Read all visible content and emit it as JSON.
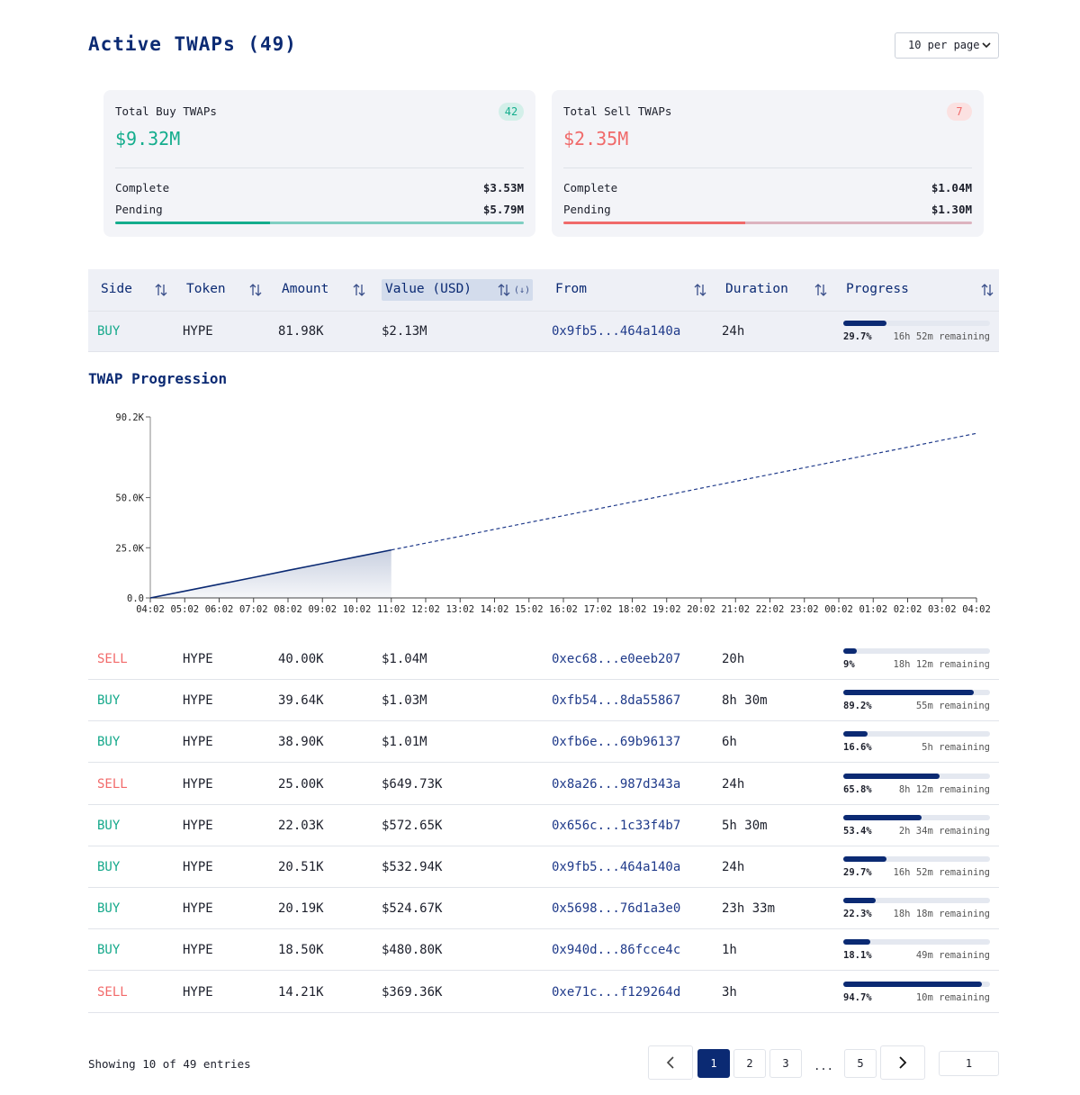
{
  "header": {
    "title": "Active TWAPs (49)",
    "per_page": "10 per page"
  },
  "cards": [
    {
      "label": "Total Buy TWAPs",
      "count": "42",
      "total": "$9.32M",
      "color": "#14ad8d",
      "track_color": "#7fcfc2",
      "badge_bg": "#d3efe9",
      "complete_label": "Complete",
      "complete": {
        "value": 3530000,
        "label": "$3.53M"
      },
      "pending_label": "Pending",
      "pending": {
        "value": 5790000,
        "label": "$5.79M"
      }
    },
    {
      "label": "Total Sell TWAPs",
      "count": "7",
      "total": "$2.35M",
      "color": "#f06a6a",
      "track_color": "#dcb3bf",
      "badge_bg": "#fbe1e1",
      "complete_label": "Complete",
      "complete": {
        "value": 1040000,
        "label": "$1.04M"
      },
      "pending_label": "Pending",
      "pending": {
        "value": 1300000,
        "label": "$1.30M"
      }
    }
  ],
  "table": {
    "columns": [
      "Side",
      "Token",
      "Amount",
      "Value (USD)",
      "From",
      "Duration",
      "Progress"
    ],
    "sort_indicator": "(↓)",
    "side_colors": {
      "BUY": "#14a88a",
      "SELL": "#f26a6a"
    },
    "rows": [
      {
        "side": "BUY",
        "token": "HYPE",
        "amount": "81.98K",
        "value": "$2.13M",
        "from": "0x9fb5...464a140a",
        "duration": "24h",
        "progress": {
          "value": 29.7,
          "label": "29.7%"
        },
        "remaining": "16h 52m remaining"
      },
      {
        "side": "SELL",
        "token": "HYPE",
        "amount": "40.00K",
        "value": "$1.04M",
        "from": "0xec68...e0eeb207",
        "duration": "20h",
        "progress": {
          "value": 9,
          "label": "9%"
        },
        "remaining": "18h 12m remaining"
      },
      {
        "side": "BUY",
        "token": "HYPE",
        "amount": "39.64K",
        "value": "$1.03M",
        "from": "0xfb54...8da55867",
        "duration": "8h 30m",
        "progress": {
          "value": 89.2,
          "label": "89.2%"
        },
        "remaining": "55m remaining"
      },
      {
        "side": "BUY",
        "token": "HYPE",
        "amount": "38.90K",
        "value": "$1.01M",
        "from": "0xfb6e...69b96137",
        "duration": "6h",
        "progress": {
          "value": 16.6,
          "label": "16.6%"
        },
        "remaining": "5h remaining"
      },
      {
        "side": "SELL",
        "token": "HYPE",
        "amount": "25.00K",
        "value": "$649.73K",
        "from": "0x8a26...987d343a",
        "duration": "24h",
        "progress": {
          "value": 65.8,
          "label": "65.8%"
        },
        "remaining": "8h 12m remaining"
      },
      {
        "side": "BUY",
        "token": "HYPE",
        "amount": "22.03K",
        "value": "$572.65K",
        "from": "0x656c...1c33f4b7",
        "duration": "5h 30m",
        "progress": {
          "value": 53.4,
          "label": "53.4%"
        },
        "remaining": "2h 34m remaining"
      },
      {
        "side": "BUY",
        "token": "HYPE",
        "amount": "20.51K",
        "value": "$532.94K",
        "from": "0x9fb5...464a140a",
        "duration": "24h",
        "progress": {
          "value": 29.7,
          "label": "29.7%"
        },
        "remaining": "16h 52m remaining"
      },
      {
        "side": "BUY",
        "token": "HYPE",
        "amount": "20.19K",
        "value": "$524.67K",
        "from": "0x5698...76d1a3e0",
        "duration": "23h 33m",
        "progress": {
          "value": 22.3,
          "label": "22.3%"
        },
        "remaining": "18h 18m remaining"
      },
      {
        "side": "BUY",
        "token": "HYPE",
        "amount": "18.50K",
        "value": "$480.80K",
        "from": "0x940d...86fcce4c",
        "duration": "1h",
        "progress": {
          "value": 18.1,
          "label": "18.1%"
        },
        "remaining": "49m remaining"
      },
      {
        "side": "SELL",
        "token": "HYPE",
        "amount": "14.21K",
        "value": "$369.36K",
        "from": "0xe71c...f129264d",
        "duration": "3h",
        "progress": {
          "value": 94.7,
          "label": "94.7%"
        },
        "remaining": "10m remaining"
      }
    ]
  },
  "chart_data": {
    "type": "line",
    "title": "TWAP Progression",
    "categories": [
      "04:02",
      "05:02",
      "06:02",
      "07:02",
      "08:02",
      "09:02",
      "10:02",
      "11:02",
      "12:02",
      "13:02",
      "14:02",
      "15:02",
      "16:02",
      "17:02",
      "18:02",
      "19:02",
      "20:02",
      "21:02",
      "22:02",
      "23:02",
      "00:02",
      "01:02",
      "02:02",
      "03:02",
      "04:02"
    ],
    "series": [
      {
        "color": "#0b2a73",
        "area": true,
        "dashed": false,
        "values": [
          0,
          3400,
          6800,
          10200,
          13700,
          17100,
          20500,
          23900,
          null,
          null,
          null,
          null,
          null,
          null,
          null,
          null,
          null,
          null,
          null,
          null,
          null,
          null,
          null,
          null,
          null
        ]
      },
      {
        "color": "#1f3a8a",
        "area": false,
        "dashed": true,
        "values": [
          null,
          null,
          null,
          null,
          null,
          null,
          null,
          23900,
          27300,
          30700,
          34200,
          37600,
          41000,
          44400,
          47800,
          51200,
          54700,
          58100,
          61500,
          64900,
          68300,
          71700,
          75100,
          78600,
          82000
        ]
      }
    ],
    "ylim": [
      0,
      90200
    ],
    "yticks": [
      {
        "value": 0,
        "label": "0.0"
      },
      {
        "value": 25000,
        "label": "25.0K"
      },
      {
        "value": 50000,
        "label": "50.0K"
      },
      {
        "value": 90200,
        "label": "90.2K"
      }
    ]
  },
  "footer": {
    "showing": "Showing 10 of 49 entries",
    "pages": [
      "1",
      "2",
      "3",
      "...",
      "5"
    ],
    "page_input": "1"
  }
}
